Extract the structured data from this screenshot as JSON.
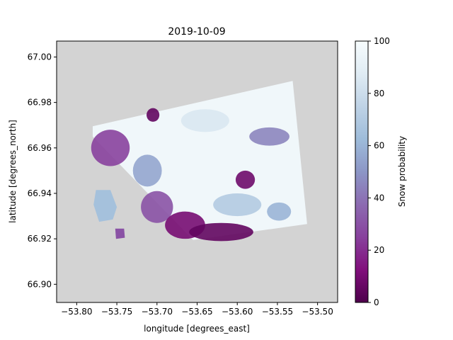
{
  "chart_data": {
    "type": "heatmap",
    "title": "2019-10-09",
    "xlabel": "longitude [degrees_east]",
    "ylabel": "latitude [degrees_north]",
    "xlim": [
      -53.825,
      -53.475
    ],
    "ylim": [
      66.892,
      67.007
    ],
    "x_ticks": [
      -53.8,
      -53.75,
      -53.7,
      -53.65,
      -53.6,
      -53.55,
      -53.5
    ],
    "x_tick_labels": [
      "−53.80",
      "−53.75",
      "−53.70",
      "−53.65",
      "−53.60",
      "−53.55",
      "−53.50"
    ],
    "y_ticks": [
      66.9,
      66.92,
      66.94,
      66.96,
      66.98,
      67.0
    ],
    "y_tick_labels": [
      "66.90",
      "66.92",
      "66.94",
      "66.96",
      "66.98",
      "67.00"
    ],
    "background_color": "#d3d3d3",
    "colormap": "BuPu_r",
    "colorbar": {
      "label": "Snow probability",
      "range": [
        0,
        100
      ],
      "ticks": [
        0,
        20,
        40,
        60,
        80,
        100
      ],
      "tick_labels": [
        "0",
        "20",
        "40",
        "60",
        "80",
        "100"
      ],
      "stops": [
        "#4d004b",
        "#810f7c",
        "#88419d",
        "#8c6bb1",
        "#8c96c6",
        "#9ebcda",
        "#bfd3e6",
        "#e0ecf4",
        "#f7fcfd"
      ]
    },
    "scene": {
      "footprint": [
        [
          -53.78,
          66.9695
        ],
        [
          -53.531,
          66.9895
        ],
        [
          -53.513,
          66.9265
        ],
        [
          -53.655,
          66.9195
        ],
        [
          -53.78,
          66.965
        ]
      ],
      "base_value": 96,
      "islands": [
        {
          "polygon": [
            [
              -53.776,
              66.9415
            ],
            [
              -53.758,
              66.9415
            ],
            [
              -53.75,
              66.934
            ],
            [
              -53.755,
              66.9285
            ],
            [
              -53.772,
              66.9275
            ],
            [
              -53.779,
              66.935
            ]
          ],
          "value": 65
        },
        {
          "polygon": [
            [
              -53.752,
              66.9245
            ],
            [
              -53.741,
              66.9245
            ],
            [
              -53.74,
              66.9205
            ],
            [
              -53.751,
              66.92
            ]
          ],
          "value": 30
        }
      ],
      "patches": [
        {
          "center": [
            -53.758,
            66.96
          ],
          "radius": [
            0.024,
            0.008
          ],
          "value": 25
        },
        {
          "center": [
            -53.712,
            66.95
          ],
          "radius": [
            0.018,
            0.007
          ],
          "value": 55
        },
        {
          "center": [
            -53.7,
            66.934
          ],
          "radius": [
            0.02,
            0.007
          ],
          "value": 30
        },
        {
          "center": [
            -53.665,
            66.926
          ],
          "radius": [
            0.025,
            0.006
          ],
          "value": 10
        },
        {
          "center": [
            -53.62,
            66.923
          ],
          "radius": [
            0.04,
            0.004
          ],
          "value": 5
        },
        {
          "center": [
            -53.59,
            66.946
          ],
          "radius": [
            0.012,
            0.004
          ],
          "value": 8
        },
        {
          "center": [
            -53.56,
            66.965
          ],
          "radius": [
            0.025,
            0.004
          ],
          "value": 45
        },
        {
          "center": [
            -53.64,
            66.972
          ],
          "radius": [
            0.03,
            0.005
          ],
          "value": 85
        },
        {
          "center": [
            -53.6,
            66.935
          ],
          "radius": [
            0.03,
            0.005
          ],
          "value": 70
        },
        {
          "center": [
            -53.705,
            66.9745
          ],
          "radius": [
            0.008,
            0.003
          ],
          "value": 5
        },
        {
          "center": [
            -53.548,
            66.932
          ],
          "radius": [
            0.015,
            0.004
          ],
          "value": 60
        }
      ]
    }
  }
}
